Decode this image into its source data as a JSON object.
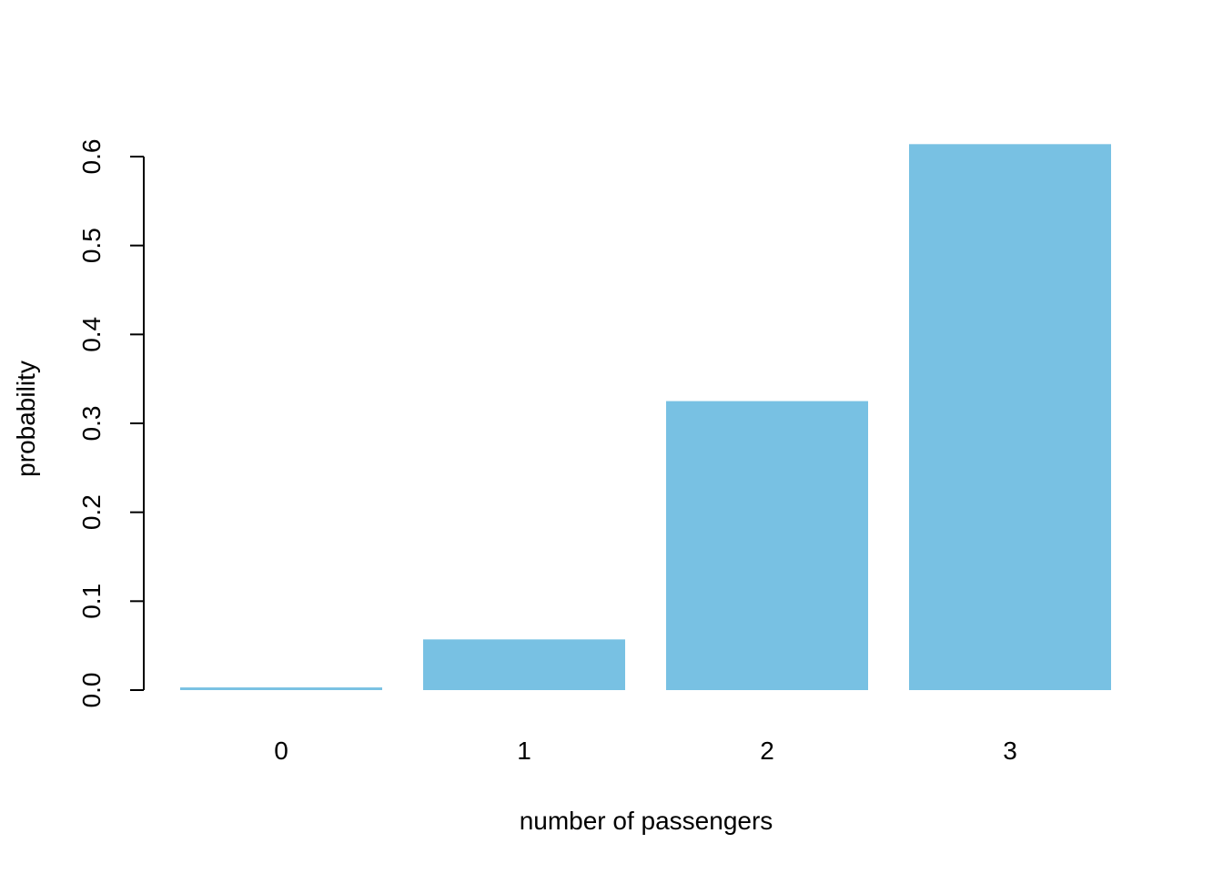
{
  "chart_data": {
    "type": "bar",
    "title": "",
    "xlabel": "number of passengers",
    "ylabel": "probability",
    "categories": [
      "0",
      "1",
      "2",
      "3"
    ],
    "values": [
      0.003,
      0.057,
      0.325,
      0.614
    ],
    "ylim": [
      0,
      0.6
    ],
    "yticks": [
      "0.0",
      "0.1",
      "0.2",
      "0.3",
      "0.4",
      "0.5",
      "0.6"
    ],
    "bar_color": "#78C1E3",
    "grid": false,
    "legend": "none"
  }
}
